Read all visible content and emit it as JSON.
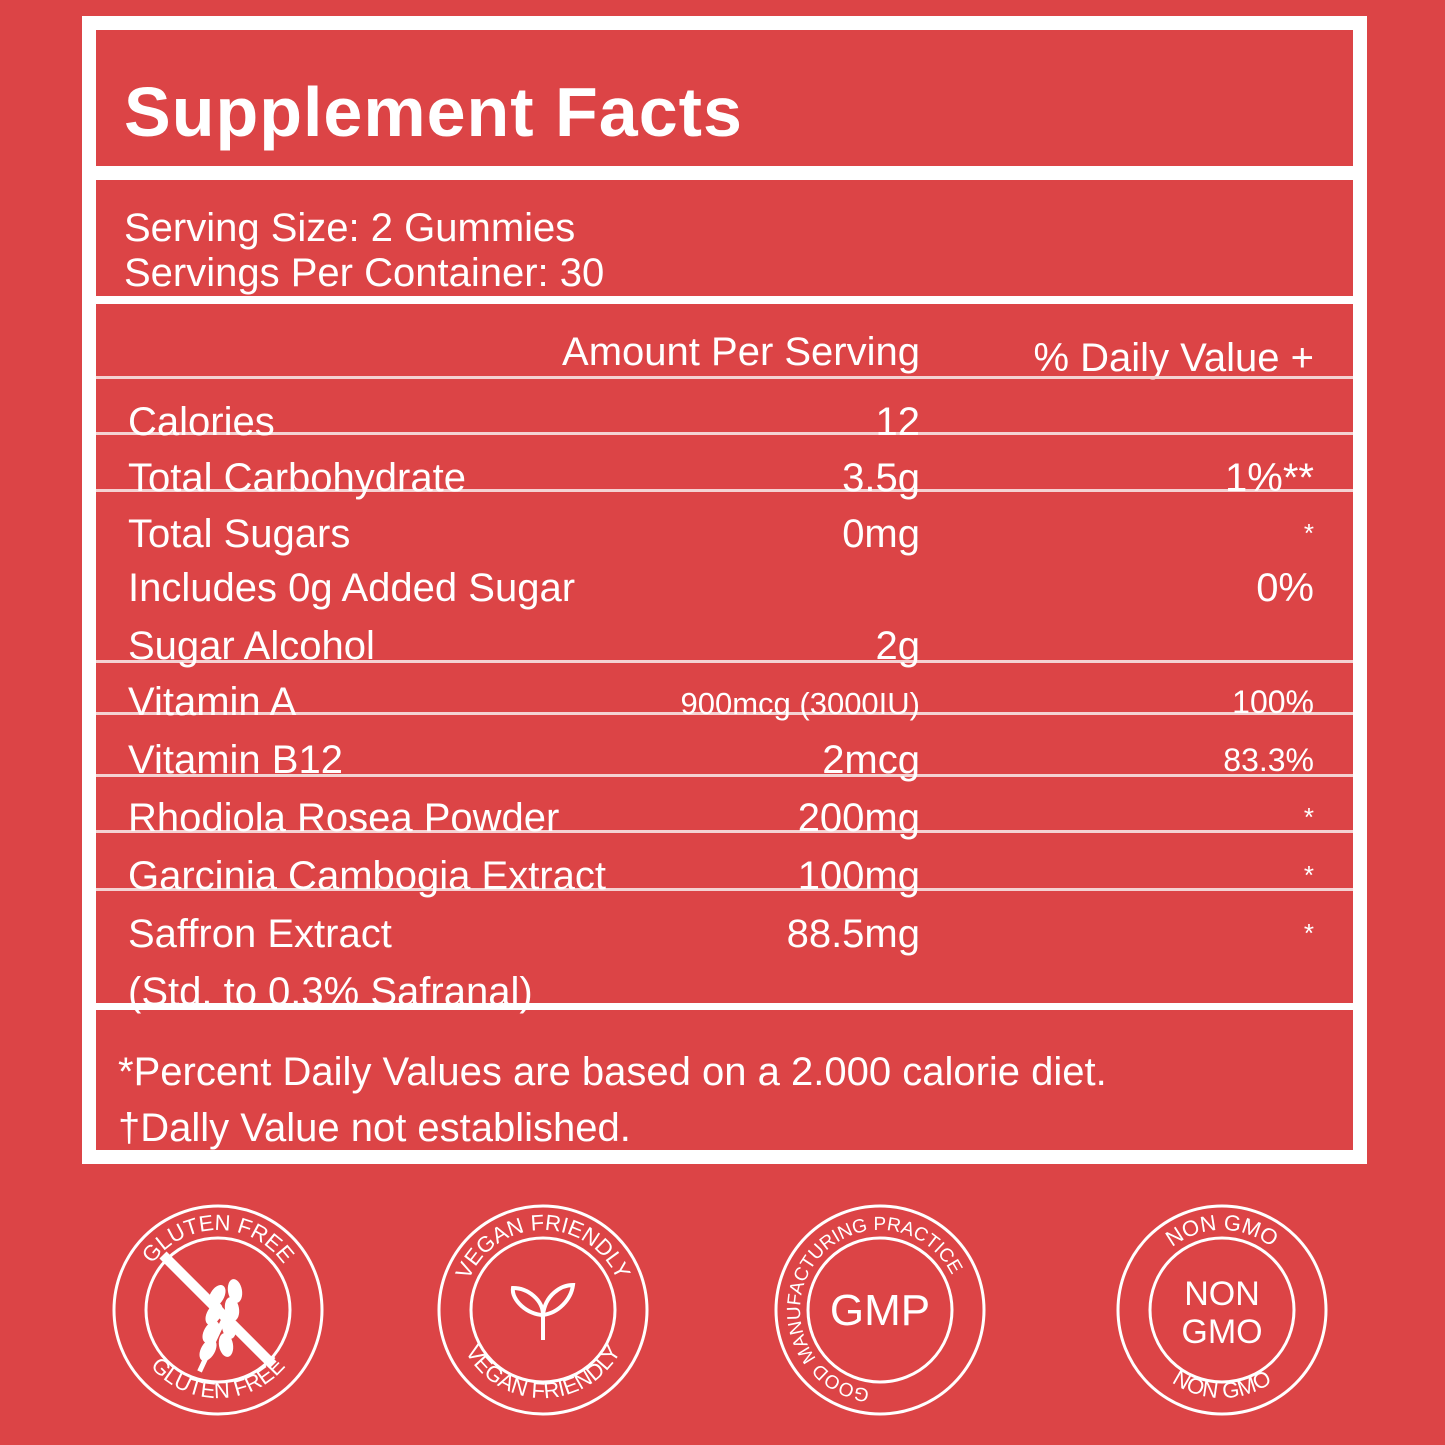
{
  "title": "Supplement Facts",
  "serving_size": "Serving Size: 2 Gummies",
  "servings_per_container": "Servings Per Container: 30",
  "headers": {
    "amount": "Amount Per Serving",
    "daily_value": "% Daily Value +"
  },
  "rows": [
    {
      "name": "Calories",
      "amount": "12",
      "dv": ""
    },
    {
      "name": "Total Carbohydrate",
      "amount": "3.5g",
      "dv": "1%**"
    },
    {
      "name": "Total Sugars",
      "amount": "0mg",
      "dv": "*"
    },
    {
      "name": "Includes 0g Added Sugar",
      "amount": "",
      "dv": "0%"
    },
    {
      "name": "Sugar Alcohol",
      "amount": "2g",
      "dv": ""
    },
    {
      "name": "Vitamin A",
      "amount": "900mcg (3000IU)",
      "dv": "100%"
    },
    {
      "name": "Vitamin B12",
      "amount": "2mcg",
      "dv": "83.3%"
    },
    {
      "name": "Rhodiola Rosea Powder",
      "amount": "200mg",
      "dv": "*"
    },
    {
      "name": "Garcinia Cambogia Extract",
      "amount": "100mg",
      "dv": "*"
    },
    {
      "name": "Saffron Extract",
      "amount": "88.5mg",
      "dv": "*"
    },
    {
      "name": "(Std. to 0.3% Safranal)",
      "amount": "",
      "dv": ""
    }
  ],
  "footnotes": [
    "*Percent Daily Values are based on a 2.000 calorie diet.",
    "†Dally Value not established."
  ],
  "badges": [
    {
      "top": "GLUTEN FREE",
      "bottom": "GLUTEN FREE",
      "center": "",
      "icon": "crossed-wheat-icon"
    },
    {
      "top": "VEGAN FRIENDLY",
      "bottom": "VEGAN FRIENDLY",
      "center": "",
      "icon": "leaf-sprout-icon"
    },
    {
      "top": "GOOD MANUFACTURING PRACTICE",
      "bottom": "",
      "center": "GMP",
      "icon": ""
    },
    {
      "top": "NON GMO",
      "bottom": "NON GMO",
      "center": "NON GMO",
      "icon": ""
    }
  ],
  "colors": {
    "background": "#dc4446",
    "foreground": "#ffffff"
  }
}
